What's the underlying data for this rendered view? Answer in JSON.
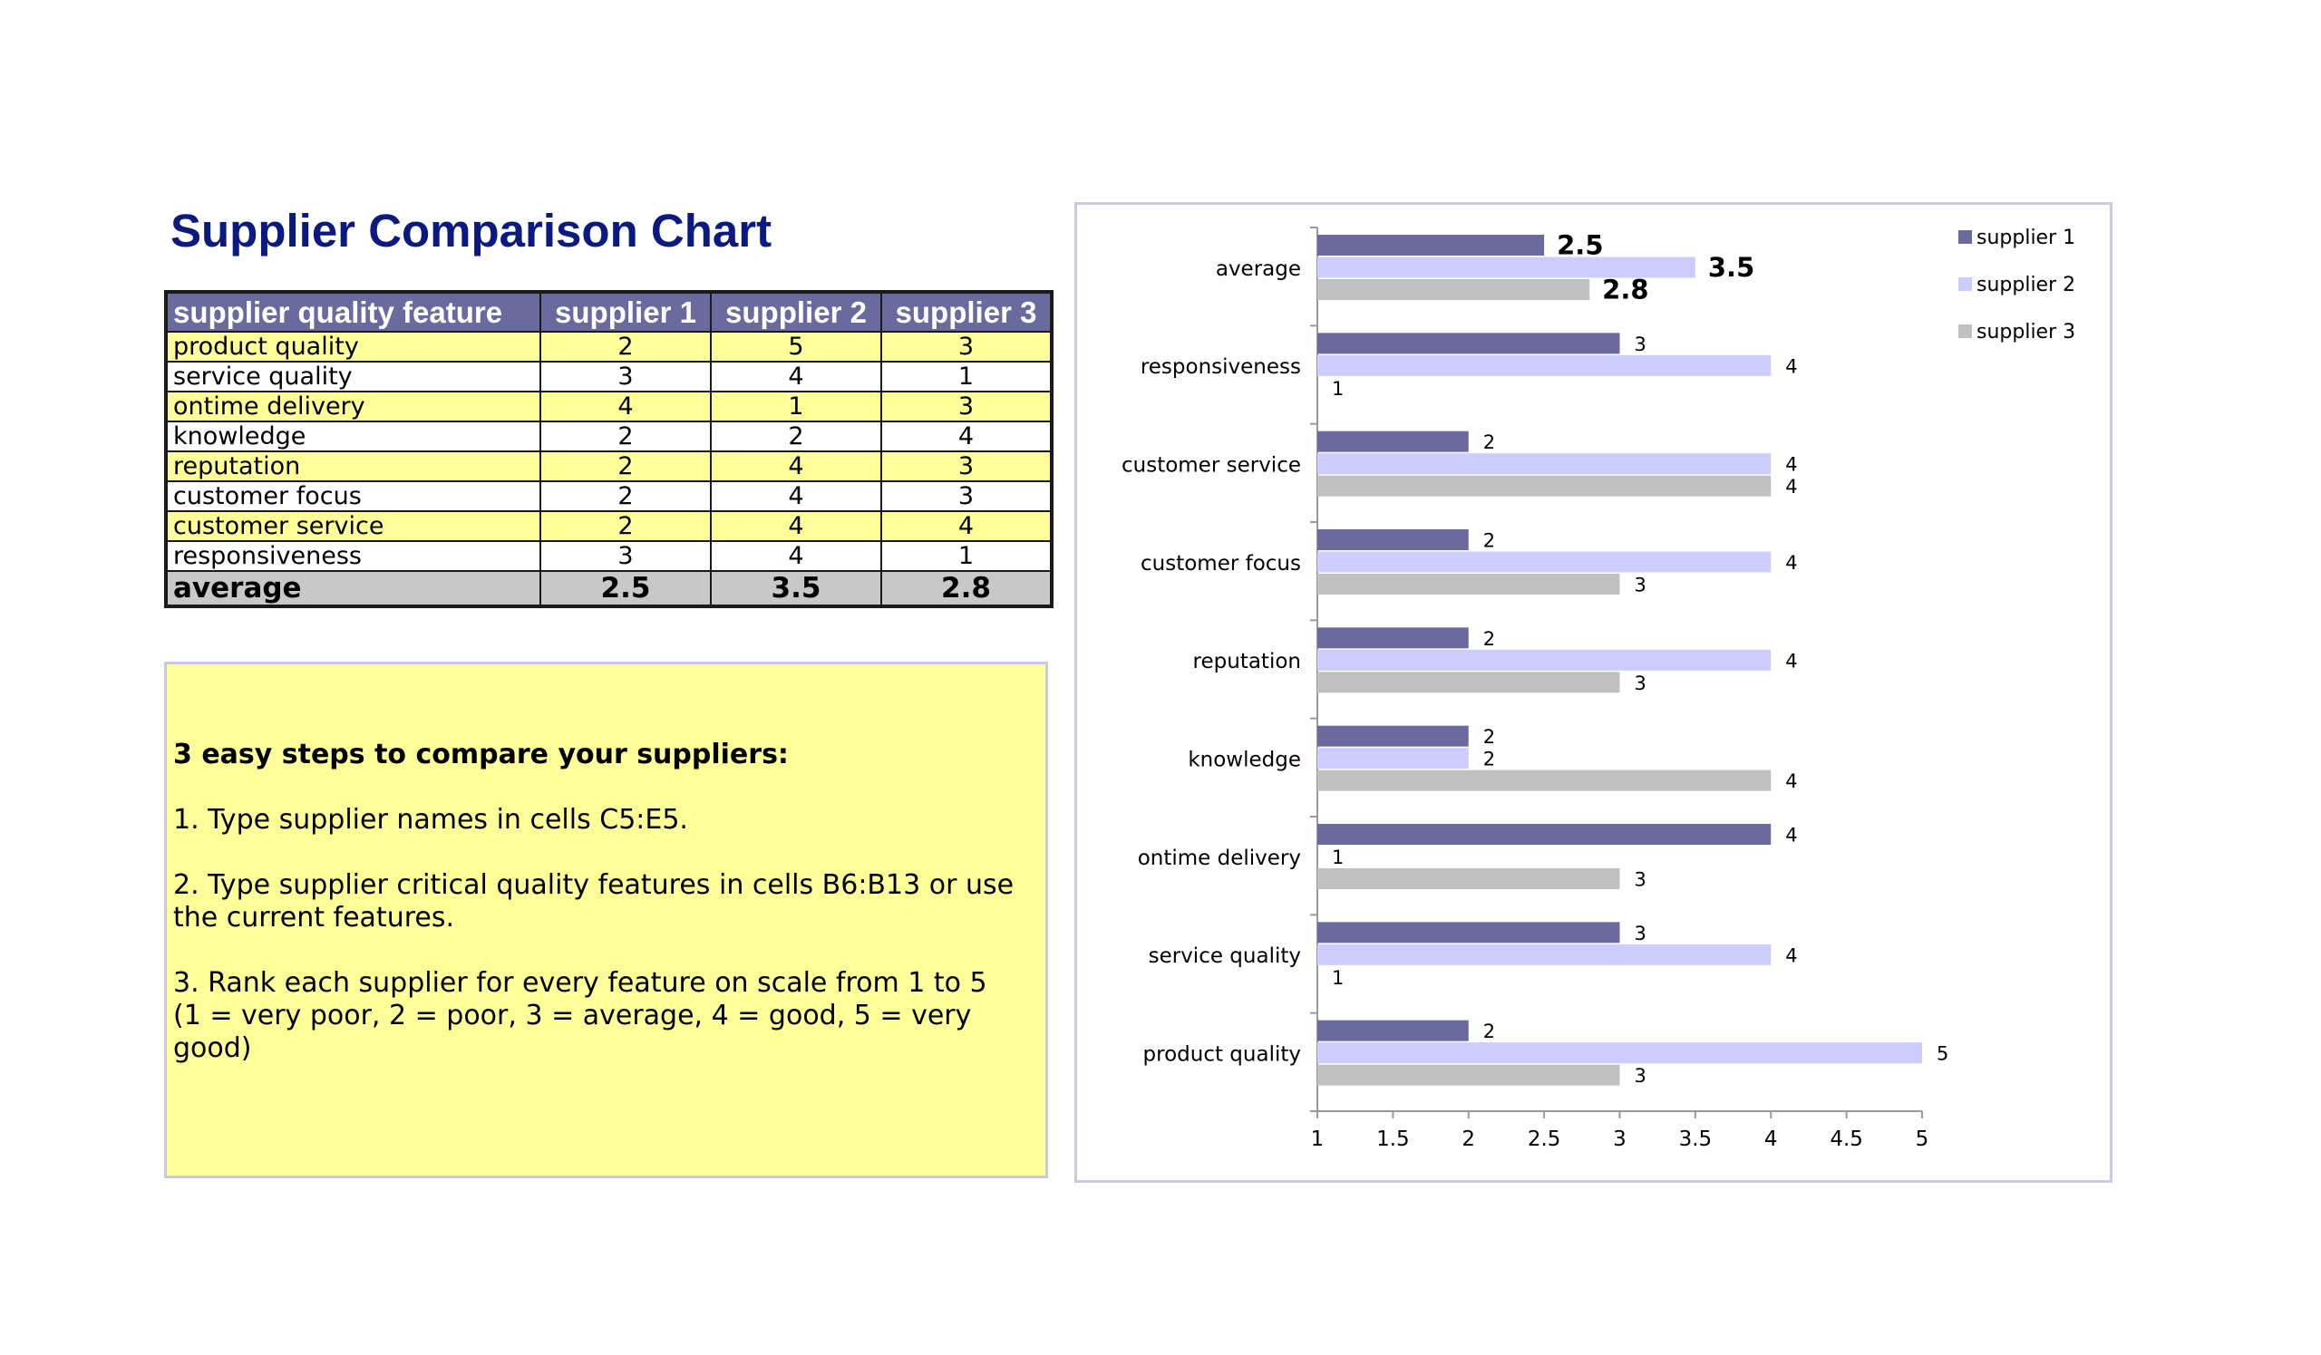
{
  "title": "Supplier Comparison Chart",
  "table": {
    "headers": [
      "supplier quality feature",
      "supplier 1",
      "supplier 2",
      "supplier 3"
    ],
    "rows": [
      {
        "feature": "product quality",
        "values": [
          "2",
          "5",
          "3"
        ]
      },
      {
        "feature": "service quality",
        "values": [
          "3",
          "4",
          "1"
        ]
      },
      {
        "feature": "ontime delivery",
        "values": [
          "4",
          "1",
          "3"
        ]
      },
      {
        "feature": "knowledge",
        "values": [
          "2",
          "2",
          "4"
        ]
      },
      {
        "feature": "reputation",
        "values": [
          "2",
          "4",
          "3"
        ]
      },
      {
        "feature": "customer focus",
        "values": [
          "2",
          "4",
          "3"
        ]
      },
      {
        "feature": "customer service",
        "values": [
          "2",
          "4",
          "4"
        ]
      },
      {
        "feature": "responsiveness",
        "values": [
          "3",
          "4",
          "1"
        ]
      }
    ],
    "average": {
      "label": "average",
      "values": [
        "2.5",
        "3.5",
        "2.8"
      ]
    }
  },
  "instructions": {
    "heading": "3 easy steps to compare your suppliers:",
    "step1": "1. Type supplier names in cells C5:E5.",
    "step2": "2. Type supplier critical quality features in cells B6:B13 or use the current features.",
    "step3": "3. Rank each supplier for every feature on scale from 1 to 5",
    "scale_note": "(1 = very poor, 2 = poor, 3 = average, 4 = good, 5 = very good)"
  },
  "chart_data": {
    "type": "bar",
    "orientation": "horizontal",
    "categories": [
      "average",
      "responsiveness",
      "customer service",
      "customer focus",
      "reputation",
      "knowledge",
      "ontime delivery",
      "service quality",
      "product quality"
    ],
    "series": [
      {
        "name": "supplier 1",
        "color": "#6a6a9e",
        "values": [
          2.5,
          3,
          2,
          2,
          2,
          2,
          4,
          3,
          2
        ]
      },
      {
        "name": "supplier 2",
        "color": "#ccccff",
        "values": [
          3.5,
          4,
          4,
          4,
          4,
          2,
          1,
          4,
          5
        ]
      },
      {
        "name": "supplier 3",
        "color": "#c0c0c0",
        "values": [
          2.8,
          1,
          4,
          3,
          3,
          4,
          3,
          1,
          3
        ]
      }
    ],
    "x_ticks": [
      "1",
      "1.5",
      "2",
      "2.5",
      "3",
      "3.5",
      "4",
      "4.5",
      "5"
    ],
    "xlim": [
      1,
      5
    ],
    "grid": false,
    "legend": "top-right",
    "title": "",
    "xlabel": "",
    "ylabel": ""
  }
}
